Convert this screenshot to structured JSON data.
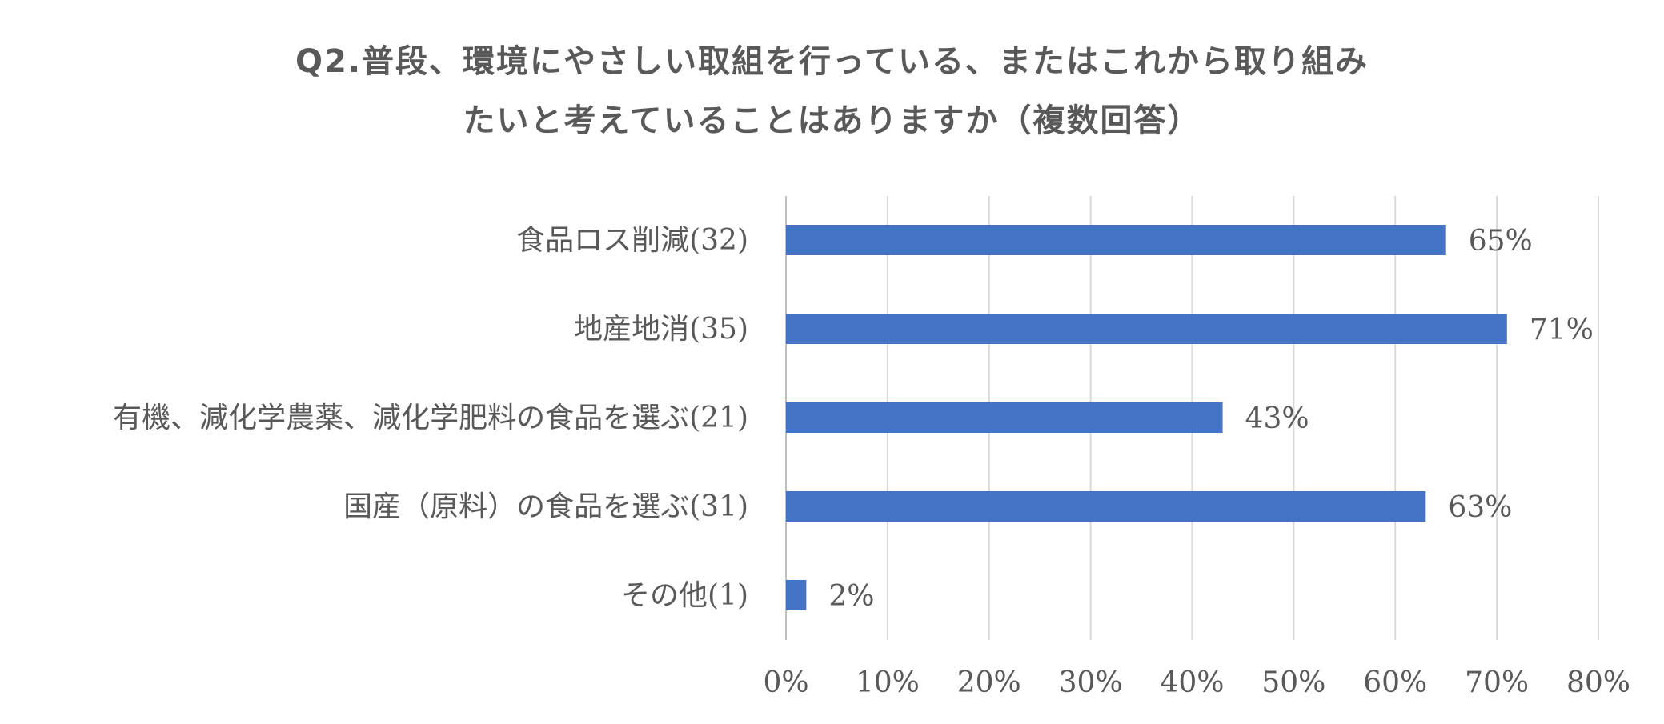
{
  "chart_data": {
    "type": "bar",
    "orientation": "horizontal",
    "title_lines": [
      "Q2.普段、環境にやさしい取組を行っている、またはこれから取り組み",
      "たいと考えていることはありますか（複数回答）"
    ],
    "categories": [
      "食品ロス削減(32)",
      "地産地消(35)",
      "有機、減化学農薬、減化学肥料の食品を選ぶ(21)",
      "国産（原料）の食品を選ぶ(31)",
      "その他(1)"
    ],
    "values": [
      65,
      71,
      43,
      63,
      2
    ],
    "value_labels": [
      "65%",
      "71%",
      "43%",
      "63%",
      "2%"
    ],
    "xlim": [
      0,
      80
    ],
    "x_ticks": [
      0,
      10,
      20,
      30,
      40,
      50,
      60,
      70,
      80
    ],
    "x_tick_labels": [
      "0%",
      "10%",
      "20%",
      "30%",
      "40%",
      "50%",
      "60%",
      "70%",
      "80%"
    ],
    "grid": "vertical",
    "legend": "none",
    "bar_color": "#4472C4",
    "grid_color": "#D9D9D9",
    "text_color": "#595959"
  }
}
